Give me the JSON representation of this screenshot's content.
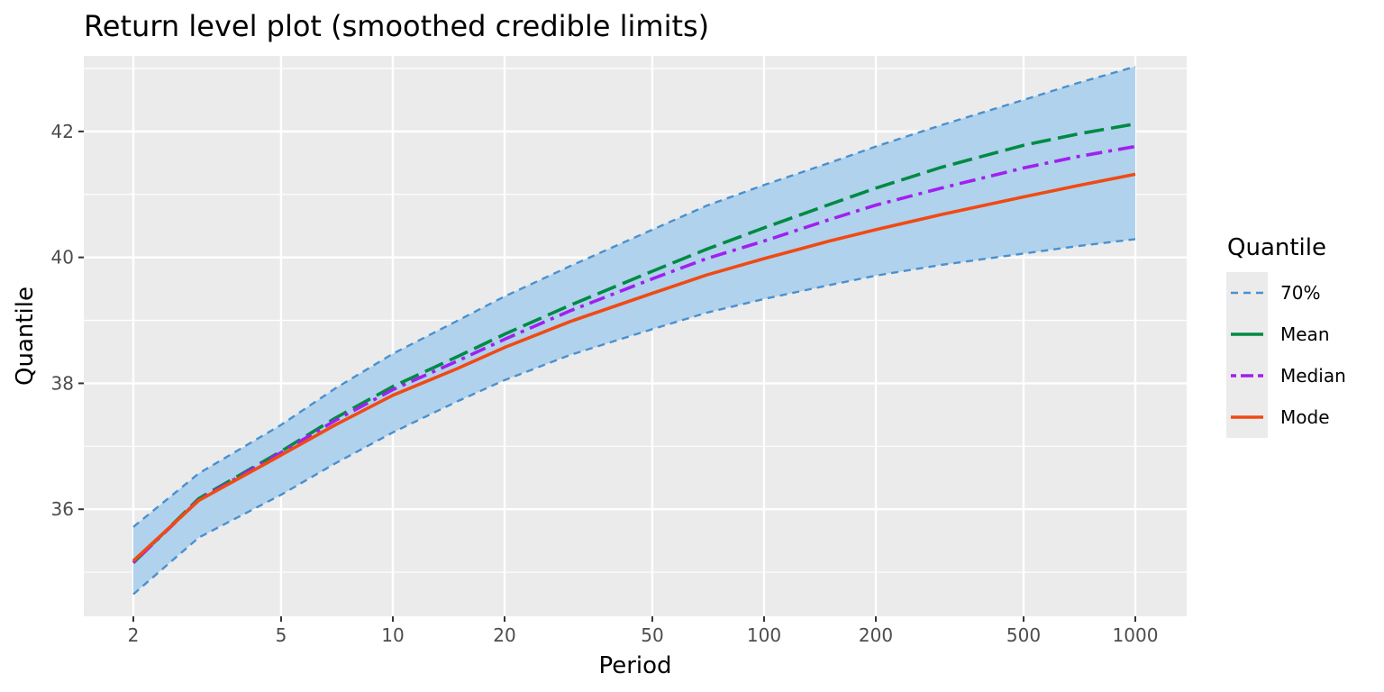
{
  "chart_data": {
    "type": "line",
    "title": "Return level plot (smoothed credible limits)",
    "xlabel": "Period",
    "ylabel": "Quantile",
    "x_scale": "log",
    "xlim": [
      2,
      1000
    ],
    "ylim": [
      34.3,
      43.2
    ],
    "x_ticks": [
      2,
      5,
      10,
      20,
      50,
      100,
      200,
      500,
      1000
    ],
    "x_tick_labels": [
      "2",
      "5",
      "10",
      "20",
      "50",
      "100",
      "200",
      "500",
      "1000"
    ],
    "y_ticks": [
      36,
      38,
      40,
      42
    ],
    "y_tick_labels": [
      "36",
      "38",
      "40",
      "42"
    ],
    "grid": true,
    "legend": {
      "title": "Quantile",
      "position": "right",
      "entries": [
        "70%",
        "Mean",
        "Median",
        "Mode"
      ]
    },
    "x": [
      2,
      3,
      5,
      7,
      10,
      15,
      20,
      30,
      50,
      70,
      100,
      150,
      200,
      300,
      500,
      700,
      1000
    ],
    "series": [
      {
        "name": "70%",
        "role": "upper-limit",
        "style": "dashed",
        "color": "#4a90d0",
        "values": [
          35.72,
          36.57,
          37.34,
          37.92,
          38.47,
          39.0,
          39.38,
          39.86,
          40.44,
          40.82,
          41.15,
          41.5,
          41.76,
          42.1,
          42.5,
          42.77,
          43.03
        ]
      },
      {
        "name": "70%",
        "role": "lower-limit",
        "style": "dashed",
        "color": "#4a90d0",
        "values": [
          34.65,
          35.55,
          36.23,
          36.73,
          37.22,
          37.72,
          38.05,
          38.45,
          38.86,
          39.12,
          39.34,
          39.56,
          39.71,
          39.88,
          40.06,
          40.18,
          40.29
        ]
      },
      {
        "name": "Mean",
        "style": "longdash",
        "color": "#008a44",
        "values": [
          35.15,
          36.17,
          36.92,
          37.45,
          37.95,
          38.43,
          38.78,
          39.24,
          39.78,
          40.13,
          40.47,
          40.84,
          41.1,
          41.43,
          41.78,
          41.96,
          42.12
        ]
      },
      {
        "name": "Median",
        "style": "dotdash",
        "color": "#a020f0",
        "values": [
          35.15,
          36.15,
          36.9,
          37.41,
          37.9,
          38.36,
          38.7,
          39.15,
          39.66,
          39.98,
          40.26,
          40.6,
          40.83,
          41.1,
          41.42,
          41.6,
          41.76
        ]
      },
      {
        "name": "Mode",
        "style": "solid",
        "color": "#f04a14",
        "values": [
          35.18,
          36.14,
          36.86,
          37.34,
          37.81,
          38.24,
          38.57,
          38.98,
          39.43,
          39.72,
          39.98,
          40.26,
          40.44,
          40.68,
          40.96,
          41.14,
          41.32
        ]
      }
    ],
    "band_color": "#b0d2ec",
    "panel_color": "#ebebeb",
    "grid_color": "#ffffff"
  }
}
